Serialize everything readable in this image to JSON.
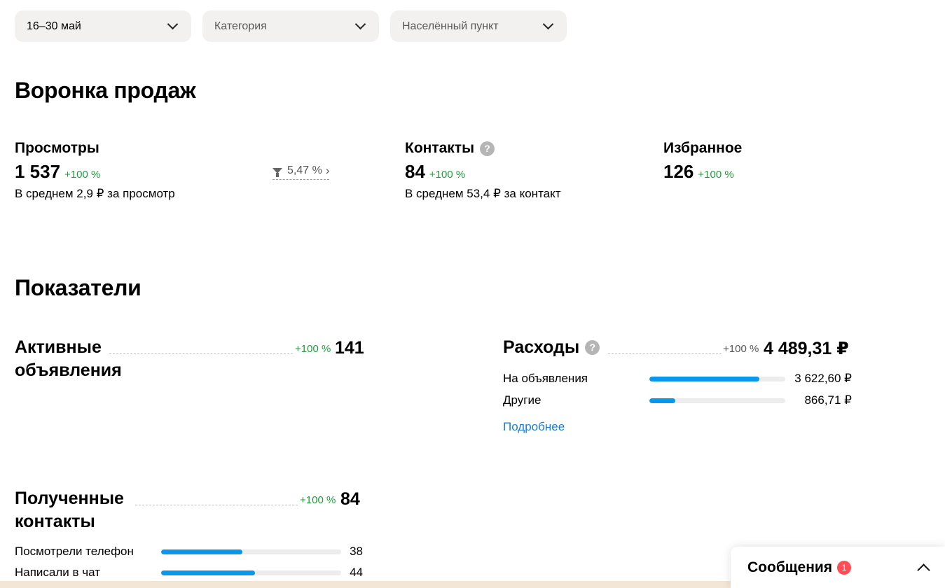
{
  "filters": {
    "period": "16–30 май",
    "category_placeholder": "Категория",
    "city_placeholder": "Населённый пункт"
  },
  "funnel": {
    "title": "Воронка продаж",
    "views": {
      "label": "Просмотры",
      "value": "1 537",
      "change": "+100 %",
      "avg": "В среднем 2,9 ₽ за просмотр"
    },
    "conversion": "5,47 %",
    "contacts": {
      "label": "Контакты",
      "value": "84",
      "change": "+100 %",
      "avg": "В среднем 53,4 ₽ за контакт"
    },
    "favorites": {
      "label": "Избранное",
      "value": "126",
      "change": "+100 %"
    }
  },
  "indicators": {
    "title": "Показатели",
    "active_ads": {
      "line1": "Активные",
      "line2": "объявления",
      "change": "+100 %",
      "value": "141"
    },
    "expenses": {
      "label": "Расходы",
      "change": "+100 %",
      "value": "4 489,31 ₽",
      "items": [
        {
          "label": "На объявления",
          "value": "3 622,60 ₽",
          "fraction": 0.81
        },
        {
          "label": "Другие",
          "value": "866,71 ₽",
          "fraction": 0.19
        }
      ],
      "more_link": "Подробнее"
    },
    "received_contacts": {
      "line1": "Полученные",
      "line2": "контакты",
      "change": "+100 %",
      "value": "84",
      "items": [
        {
          "label": "Посмотрели телефон",
          "value": "38",
          "fraction": 0.45
        },
        {
          "label": "Написали в чат",
          "value": "44",
          "fraction": 0.52
        }
      ]
    }
  },
  "messages": {
    "label": "Сообщения",
    "badge": "1"
  },
  "colors": {
    "positive": "#1f9d3a",
    "bar": "#0a96ea",
    "link": "#1a7ed6",
    "badge": "#ff4d55"
  }
}
